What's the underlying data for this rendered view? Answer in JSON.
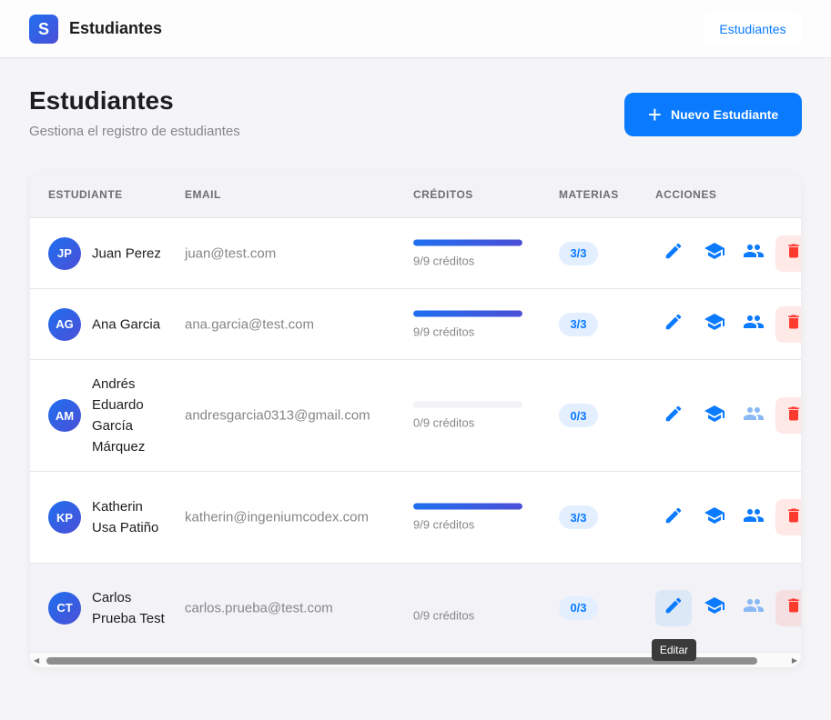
{
  "header": {
    "logo_letter": "S",
    "app_title": "Estudiantes",
    "nav_link": "Estudiantes"
  },
  "page": {
    "title": "Estudiantes",
    "subtitle": "Gestiona el registro de estudiantes",
    "new_button": "Nuevo Estudiante"
  },
  "table": {
    "columns": [
      "ESTUDIANTE",
      "EMAIL",
      "CRÉDITOS",
      "MATERIAS",
      "ACCIONES"
    ],
    "rows": [
      {
        "initials": "JP",
        "name": "Juan Perez",
        "email": "juan@test.com",
        "credits": "9/9 créditos",
        "progress": 1,
        "subjects": "3/3",
        "groups_enabled": true
      },
      {
        "initials": "AG",
        "name": "Ana Garcia",
        "email": "ana.garcia@test.com",
        "credits": "9/9 créditos",
        "progress": 1,
        "subjects": "3/3",
        "groups_enabled": true
      },
      {
        "initials": "AM",
        "name": "Andrés Eduardo García Márquez",
        "email": "andresgarcia0313@gmail.com",
        "credits": "0/9 créditos",
        "progress": 0,
        "subjects": "0/3",
        "groups_enabled": false
      },
      {
        "initials": "KP",
        "name": "Katherin Usa Patiño",
        "email": "katherin@ingeniumcodex.com",
        "credits": "9/9 créditos",
        "progress": 1,
        "subjects": "3/3",
        "groups_enabled": true
      },
      {
        "initials": "CT",
        "name": "Carlos Prueba Test",
        "email": "carlos.prueba@test.com",
        "credits": "0/9 créditos",
        "progress": 0,
        "subjects": "0/3",
        "groups_enabled": false
      }
    ]
  },
  "tooltip": "Editar",
  "colors": {
    "accent": "#0a7aff",
    "danger": "#ff3b30"
  }
}
